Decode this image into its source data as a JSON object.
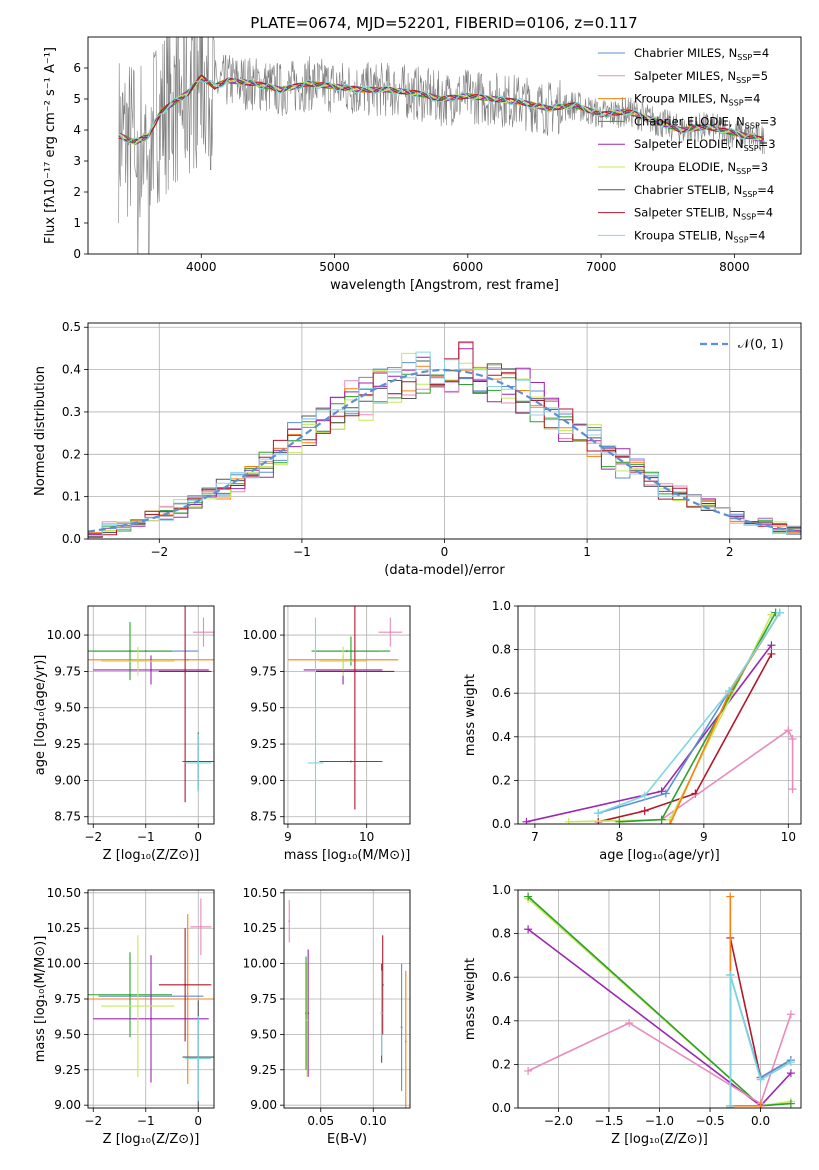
{
  "figure": {
    "title": "PLATE=0674, MJD=52201, FIBERID=0106, z=0.117"
  },
  "chart_data": [
    {
      "id": "spectrum",
      "type": "line",
      "xlabel": "wavelength [Angstrom, rest frame]",
      "ylabel": "Flux [fλ10⁻¹⁷ erg cm⁻² s⁻¹ A⁻¹]",
      "xlim": [
        3150,
        8500
      ],
      "ylim": [
        0,
        7
      ],
      "xticks": [
        4000,
        5000,
        6000,
        7000,
        8000
      ],
      "yticks": [
        0,
        1,
        2,
        3,
        4,
        5,
        6
      ],
      "data_line_color": "#7f7f7f",
      "model_color": "#7fd6e0",
      "data_x": [
        3400,
        3500,
        3600,
        3700,
        3800,
        3900,
        4000,
        4100,
        4200,
        4400,
        4600,
        4800,
        5000,
        5200,
        5400,
        5600,
        5800,
        6000,
        6200,
        6400,
        6600,
        6800,
        7000,
        7200,
        7400,
        7600,
        7800,
        8000,
        8200
      ],
      "data_y": [
        3.8,
        3.6,
        3.8,
        4.6,
        4.9,
        5.2,
        5.7,
        5.4,
        5.6,
        5.5,
        5.3,
        5.5,
        5.4,
        5.3,
        5.3,
        5.2,
        5.0,
        5.1,
        5.0,
        4.9,
        4.7,
        4.8,
        4.5,
        4.6,
        4.3,
        4.0,
        4.1,
        3.9,
        3.7
      ],
      "legend": [
        {
          "label": "Chabrier MILES, N",
          "sub": "SSP",
          "tail": "=4",
          "color": "#5b8fd6"
        },
        {
          "label": "Salpeter MILES, N",
          "sub": "SSP",
          "tail": "=5",
          "color": "#e88bbd"
        },
        {
          "label": "Kroupa MILES, N",
          "sub": "SSP",
          "tail": "=4",
          "color": "#ff7f0e"
        },
        {
          "label": "Chabrier ELODIE, N",
          "sub": "SSP",
          "tail": "=3",
          "color": "#2ca02c"
        },
        {
          "label": "Salpeter ELODIE, N",
          "sub": "SSP",
          "tail": "=3",
          "color": "#9c27b0"
        },
        {
          "label": "Kroupa ELODIE, N",
          "sub": "SSP",
          "tail": "=3",
          "color": "#c6e85b"
        },
        {
          "label": "Chabrier STELIB, N",
          "sub": "SSP",
          "tail": "=4",
          "color": "#555555"
        },
        {
          "label": "Salpeter STELIB, N",
          "sub": "SSP",
          "tail": "=4",
          "color": "#b2182b"
        },
        {
          "label": "Kroupa STELIB, N",
          "sub": "SSP",
          "tail": "=4",
          "color": "#8fd3e8"
        }
      ]
    },
    {
      "id": "residuals",
      "type": "line",
      "xlabel": "(data-model)/error",
      "ylabel": "Normed distribution",
      "xlim": [
        -2.5,
        2.5
      ],
      "ylim": [
        0,
        0.51
      ],
      "xticks": [
        -2,
        -1,
        0,
        1,
        2
      ],
      "yticks": [
        0.0,
        0.1,
        0.2,
        0.3,
        0.4,
        0.5
      ],
      "grid": true,
      "legend": [
        {
          "label": "𝒩(0, 1)",
          "color": "#5b8fd6",
          "style": "dashed"
        }
      ]
    },
    {
      "id": "age-vs-Z",
      "type": "scatter",
      "xlabel": "Z [log₁₀(Z/Z⊙)]",
      "ylabel": "age  [log₁₀(age/yr)]",
      "xlim": [
        -2.1,
        0.3
      ],
      "ylim": [
        8.7,
        10.2
      ],
      "xticks": [
        -2,
        -1,
        0
      ],
      "yticks": [
        8.75,
        9.0,
        9.25,
        9.5,
        9.75,
        10.0
      ],
      "grid": true,
      "points": [
        {
          "x": -1.0,
          "y": 9.89,
          "xerr": 1.0,
          "yerr": 0.0,
          "color": "#5b8fd6"
        },
        {
          "x": 0.1,
          "y": 10.02,
          "xerr": 0.2,
          "yerr": 0.1,
          "color": "#e88bbd"
        },
        {
          "x": -0.2,
          "y": 9.83,
          "xerr": 2.0,
          "yerr": 0.0,
          "color": "#ff7f0e"
        },
        {
          "x": -1.3,
          "y": 9.89,
          "xerr": 0.8,
          "yerr": 0.2,
          "color": "#2ca02c"
        },
        {
          "x": -0.9,
          "y": 9.76,
          "xerr": 1.1,
          "yerr": 0.1,
          "color": "#9c27b0"
        },
        {
          "x": -1.15,
          "y": 9.82,
          "xerr": 0.7,
          "yerr": 0.1,
          "color": "#c6e85b"
        },
        {
          "x": 0.0,
          "y": 9.13,
          "xerr": 0.3,
          "yerr": 0.2,
          "color": "#555555"
        },
        {
          "x": -0.25,
          "y": 9.75,
          "xerr": 0.5,
          "yerr": 0.9,
          "color": "#b2182b"
        },
        {
          "x": 0.0,
          "y": 9.12,
          "xerr": 0.25,
          "yerr": 0.2,
          "color": "#7fd6e0"
        }
      ]
    },
    {
      "id": "age-vs-mass",
      "type": "scatter",
      "xlabel": "mass [log₁₀(M/M⊙)]",
      "ylabel": "",
      "xlim": [
        8.95,
        10.55
      ],
      "ylim": [
        8.7,
        10.2
      ],
      "xticks": [
        9,
        10
      ],
      "yticks": [
        8.75,
        9.0,
        9.25,
        9.5,
        9.75,
        10.0
      ],
      "grid": true,
      "points": [
        {
          "x": 9.75,
          "y": 9.89,
          "xerr": 0.4,
          "yerr": 0.0,
          "color": "#5b8fd6"
        },
        {
          "x": 10.3,
          "y": 10.02,
          "xerr": 0.15,
          "yerr": 0.1,
          "color": "#e88bbd"
        },
        {
          "x": 9.7,
          "y": 9.83,
          "xerr": 0.7,
          "yerr": 0.0,
          "color": "#ff7f0e"
        },
        {
          "x": 9.8,
          "y": 9.89,
          "xerr": 0.5,
          "yerr": 0.1,
          "color": "#2ca02c"
        },
        {
          "x": 9.7,
          "y": 9.76,
          "xerr": 0.5,
          "yerr": 0.1,
          "color": "#9c27b0"
        },
        {
          "x": 9.7,
          "y": 9.82,
          "xerr": 0.3,
          "yerr": 0.1,
          "color": "#c6e85b"
        },
        {
          "x": 9.8,
          "y": 9.13,
          "xerr": 0.4,
          "yerr": 0.0,
          "color": "#555555"
        },
        {
          "x": 9.85,
          "y": 9.75,
          "xerr": 0.5,
          "yerr": 0.95,
          "color": "#b2182b"
        },
        {
          "x": 9.35,
          "y": 9.12,
          "xerr": 0.1,
          "yerr": 1.0,
          "color": "#7fd6e0"
        }
      ]
    },
    {
      "id": "massweight-vs-age",
      "type": "line",
      "xlabel": "age  [log₁₀(age/yr)]",
      "ylabel": "mass weight",
      "xlim": [
        6.8,
        10.15
      ],
      "ylim": [
        0,
        1.0
      ],
      "xticks": [
        7,
        8,
        9,
        10
      ],
      "yticks": [
        0.0,
        0.2,
        0.4,
        0.6,
        0.8,
        1.0
      ],
      "grid": true,
      "series": [
        {
          "color": "#b2182b",
          "x": [
            7.75,
            8.3,
            8.9,
            9.8
          ],
          "y": [
            0.01,
            0.06,
            0.14,
            0.78
          ]
        },
        {
          "color": "#9c27b0",
          "x": [
            6.9,
            8.5,
            9.8
          ],
          "y": [
            0.01,
            0.15,
            0.82
          ]
        },
        {
          "color": "#e88bbd",
          "x": [
            8.5,
            10.0,
            10.05,
            10.05
          ],
          "y": [
            0.02,
            0.43,
            0.39,
            0.16
          ]
        },
        {
          "color": "#c6e85b",
          "x": [
            7.4,
            8.6,
            9.8
          ],
          "y": [
            0.01,
            0.02,
            0.96
          ]
        },
        {
          "color": "#2ca02c",
          "x": [
            8.0,
            8.5,
            9.85
          ],
          "y": [
            0.01,
            0.02,
            0.97
          ]
        },
        {
          "color": "#ff7f0e",
          "x": [
            8.6,
            9.3,
            9.9
          ],
          "y": [
            0.0,
            0.6,
            0.97
          ]
        },
        {
          "color": "#5b8fd6",
          "x": [
            7.75,
            8.55,
            9.3,
            9.9
          ],
          "y": [
            0.05,
            0.14,
            0.61,
            0.97
          ]
        },
        {
          "color": "#7fd6e0",
          "x": [
            7.75,
            8.3,
            9.3,
            9.9
          ],
          "y": [
            0.05,
            0.13,
            0.61,
            0.97
          ]
        }
      ]
    },
    {
      "id": "mass-vs-Z",
      "type": "scatter",
      "xlabel": "Z [log₁₀(Z/Z⊙)]",
      "ylabel": "mass [log₁₀(M/M⊙)]",
      "xlim": [
        -2.1,
        0.3
      ],
      "ylim": [
        8.98,
        10.52
      ],
      "xticks": [
        -2,
        -1,
        0
      ],
      "yticks": [
        9.0,
        9.25,
        9.5,
        9.75,
        10.0,
        10.25,
        10.5
      ],
      "grid": true,
      "points": [
        {
          "x": -0.9,
          "y": 9.77,
          "xerr": 1.0,
          "yerr": 0.1,
          "color": "#5b8fd6"
        },
        {
          "x": 0.05,
          "y": 10.26,
          "xerr": 0.2,
          "yerr": 0.2,
          "color": "#e88bbd"
        },
        {
          "x": -0.2,
          "y": 9.75,
          "xerr": 2.0,
          "yerr": 0.6,
          "color": "#ff7f0e"
        },
        {
          "x": -1.3,
          "y": 9.78,
          "xerr": 0.8,
          "yerr": 0.3,
          "color": "#2ca02c"
        },
        {
          "x": -0.9,
          "y": 9.61,
          "xerr": 1.1,
          "yerr": 0.45,
          "color": "#9c27b0"
        },
        {
          "x": -1.15,
          "y": 9.7,
          "xerr": 0.7,
          "yerr": 0.5,
          "color": "#c6e85b"
        },
        {
          "x": 0.0,
          "y": 9.34,
          "xerr": 0.3,
          "yerr": 0.4,
          "color": "#555555"
        },
        {
          "x": -0.25,
          "y": 9.85,
          "xerr": 0.5,
          "yerr": 0.4,
          "color": "#b2182b"
        },
        {
          "x": 0.0,
          "y": 9.33,
          "xerr": 0.25,
          "yerr": 0.3,
          "color": "#7fd6e0"
        }
      ]
    },
    {
      "id": "mass-vs-EBV",
      "type": "scatter",
      "xlabel": "E(B-V)",
      "ylabel": "",
      "xlim": [
        0.015,
        0.135
      ],
      "ylim": [
        8.98,
        10.52
      ],
      "xticks": [
        0.05,
        0.1
      ],
      "yticks": [
        9.0,
        9.25,
        9.5,
        9.75,
        10.0,
        10.25,
        10.5
      ],
      "grid": true,
      "points": [
        {
          "x": 0.127,
          "y": 9.55,
          "yerr": 0.45,
          "color": "#5b8fd6"
        },
        {
          "x": 0.02,
          "y": 10.3,
          "yerr": 0.15,
          "color": "#e88bbd"
        },
        {
          "x": 0.131,
          "y": 9.45,
          "yerr": 0.5,
          "color": "#ff7f0e"
        },
        {
          "x": 0.036,
          "y": 9.65,
          "yerr": 0.4,
          "color": "#2ca02c"
        },
        {
          "x": 0.038,
          "y": 9.65,
          "yerr": 0.45,
          "color": "#9c27b0"
        },
        {
          "x": 0.037,
          "y": 9.6,
          "yerr": 0.4,
          "color": "#c6e85b"
        },
        {
          "x": 0.108,
          "y": 9.65,
          "yerr": 0.35,
          "color": "#555555"
        },
        {
          "x": 0.109,
          "y": 9.85,
          "yerr": 0.35,
          "color": "#b2182b"
        },
        {
          "x": 0.108,
          "y": 9.65,
          "yerr": 0.3,
          "color": "#7fd6e0"
        }
      ]
    },
    {
      "id": "massweight-vs-Z",
      "type": "line",
      "xlabel": "Z [log₁₀(Z/Z⊙)]",
      "ylabel": "mass weight",
      "xlim": [
        -2.4,
        0.4
      ],
      "ylim": [
        0,
        1.0
      ],
      "xticks": [
        -2.0,
        -1.5,
        -1.0,
        -0.5,
        0.0
      ],
      "yticks": [
        0.0,
        0.2,
        0.4,
        0.6,
        0.8,
        1.0
      ],
      "grid": true,
      "series": [
        {
          "color": "#c6e85b",
          "x": [
            -2.3,
            0.0,
            0.3
          ],
          "y": [
            0.96,
            0.01,
            0.03
          ]
        },
        {
          "color": "#2ca02c",
          "x": [
            -2.3,
            0.0,
            0.3
          ],
          "y": [
            0.97,
            0.01,
            0.02
          ]
        },
        {
          "color": "#9c27b0",
          "x": [
            -2.3,
            0.0,
            0.3
          ],
          "y": [
            0.82,
            0.01,
            0.16
          ]
        },
        {
          "color": "#e88bbd",
          "x": [
            -2.3,
            -1.3,
            0.0,
            0.3
          ],
          "y": [
            0.17,
            0.39,
            0.02,
            0.43
          ]
        },
        {
          "color": "#b2182b",
          "x": [
            -0.3,
            -0.3,
            0.0,
            0.3
          ],
          "y": [
            0.0,
            0.78,
            0.14,
            0.22
          ]
        },
        {
          "color": "#ff7f0e",
          "x": [
            -0.3,
            -0.3,
            -0.3,
            0.0
          ],
          "y": [
            0.0,
            0.97,
            0.01,
            0.01
          ]
        },
        {
          "color": "#5b8fd6",
          "x": [
            -0.3,
            -0.3,
            0.0,
            0.3
          ],
          "y": [
            0.01,
            0.61,
            0.14,
            0.22
          ]
        },
        {
          "color": "#7fd6e0",
          "x": [
            -0.3,
            -0.3,
            0.0,
            0.3
          ],
          "y": [
            0.01,
            0.61,
            0.13,
            0.21
          ]
        }
      ]
    }
  ]
}
